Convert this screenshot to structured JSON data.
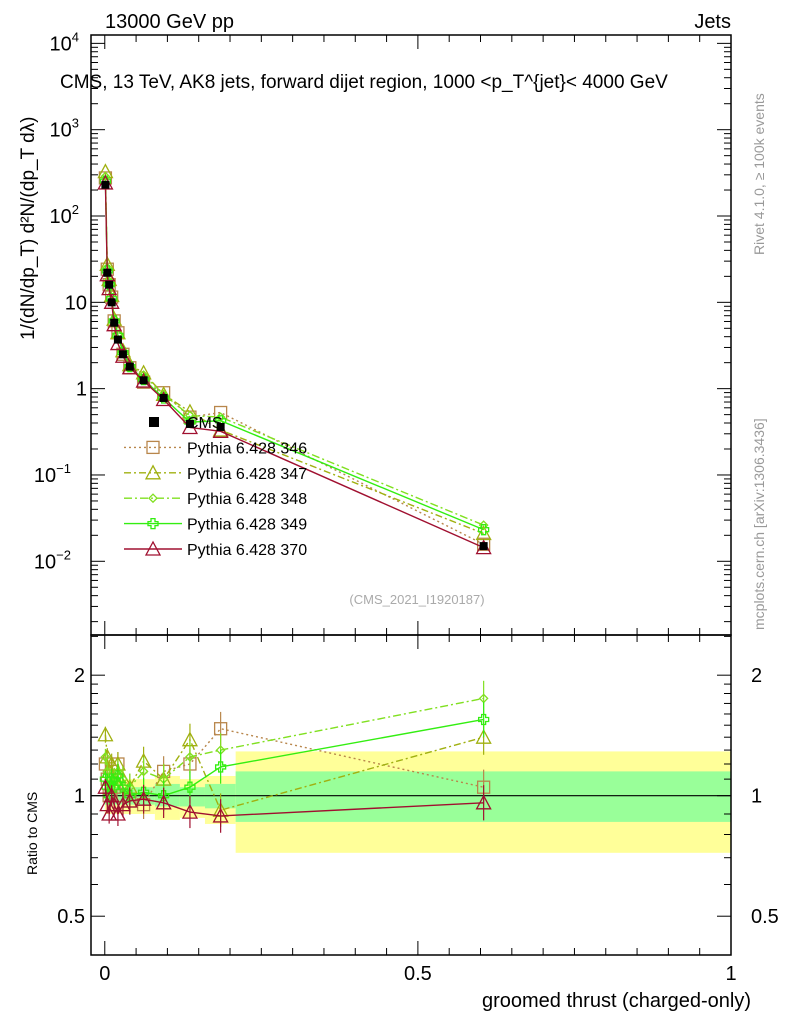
{
  "chart_data": {
    "type": "line",
    "header_left": "13000 GeV pp",
    "header_right": "Jets",
    "title": "CMS, 13 TeV, AK8 jets, forward dijet region, 1000 <p_T^{jet}< 4000 GeV",
    "ylabel": "1/(dN/dp_T) d²N/(dp_T dλ)",
    "ratio_ylabel": "Ratio to CMS",
    "xlabel": "groomed thrust (charged-only)",
    "side_label_top": "Rivet 4.1.0, ≥ 100k events",
    "side_label_bottom": "mcplots.cern.ch [arXiv:1306.3436]",
    "analysis_id": "(CMS_2021_I1920187)",
    "xlim": [
      -0.022,
      1.0
    ],
    "ylim_log": [
      0.0014,
      12500
    ],
    "ratio_ylim_log": [
      0.4,
      2.52
    ],
    "x_ticks": [
      {
        "v": 0,
        "label": "0"
      },
      {
        "v": 0.5,
        "label": "0.5"
      },
      {
        "v": 1,
        "label": "1"
      }
    ],
    "y_ticks": [
      {
        "v": 10000,
        "base": "10",
        "exp": "4"
      },
      {
        "v": 1000,
        "base": "10",
        "exp": "3"
      },
      {
        "v": 100,
        "base": "10",
        "exp": "2"
      },
      {
        "v": 10,
        "base": "10",
        "exp": ""
      },
      {
        "v": 1,
        "base": "1",
        "exp": ""
      },
      {
        "v": 0.1,
        "base": "10",
        "exp": "−1"
      },
      {
        "v": 0.01,
        "base": "10",
        "exp": "−2"
      }
    ],
    "ratio_ticks": [
      {
        "v": 2,
        "label": "2"
      },
      {
        "v": 1,
        "label": "1"
      },
      {
        "v": 0.5,
        "label": "0.5"
      }
    ],
    "x": [
      0.001,
      0.004,
      0.007,
      0.011,
      0.015,
      0.021,
      0.029,
      0.04,
      0.062,
      0.094,
      0.136,
      0.185,
      0.605
    ],
    "cms": {
      "name": "CMS",
      "values": [
        230,
        22,
        16,
        10,
        5.8,
        3.7,
        2.5,
        1.8,
        1.25,
        0.78,
        0.39,
        0.36,
        0.015
      ]
    },
    "series": [
      {
        "name": "Pythia 6.428 346",
        "color": "#b8864b",
        "marker": "square",
        "dash": "2,3",
        "ratio": [
          1.2,
          1.1,
          1.0,
          1.15,
          1.05,
          1.2,
          1.0,
          0.97,
          0.95,
          1.15,
          1.2,
          1.47,
          1.05
        ]
      },
      {
        "name": "Pythia 6.428 347",
        "color": "#a0b010",
        "marker": "triangle",
        "dash": "7,3,2,3",
        "ratio": [
          1.42,
          1.25,
          1.15,
          1.2,
          1.1,
          1.2,
          1.1,
          1.05,
          1.22,
          1.1,
          1.38,
          0.92,
          1.4
        ]
      },
      {
        "name": "Pythia 6.428 348",
        "color": "#80e020",
        "marker": "diamond",
        "dash": "8,3,2,3",
        "ratio": [
          1.25,
          1.15,
          1.1,
          1.05,
          1.1,
          1.15,
          1.1,
          1.05,
          1.15,
          1.1,
          1.25,
          1.3,
          1.75
        ]
      },
      {
        "name": "Pythia 6.428 349",
        "color": "#33ee11",
        "marker": "cross",
        "dash": "",
        "ratio": [
          1.1,
          1.05,
          1.0,
          1.1,
          1.05,
          1.12,
          1.05,
          1.0,
          1.02,
          1.0,
          1.05,
          1.18,
          1.55
        ]
      },
      {
        "name": "Pythia 6.428 370",
        "color": "#a01030",
        "marker": "triangle",
        "dash": "",
        "ratio": [
          1.05,
          0.95,
          0.9,
          1.0,
          0.95,
          0.9,
          0.95,
          0.97,
          0.98,
          0.96,
          0.91,
          0.89,
          0.96
        ]
      }
    ],
    "bands": [
      {
        "x0": 0.0,
        "x1": 0.08,
        "y_lo": 0.9,
        "y_hi": 1.1,
        "g_lo": 0.95,
        "g_hi": 1.05
      },
      {
        "x0": 0.08,
        "x1": 0.12,
        "y_lo": 0.87,
        "y_hi": 1.12,
        "g_lo": 0.94,
        "g_hi": 1.07
      },
      {
        "x0": 0.12,
        "x1": 0.16,
        "y_lo": 0.88,
        "y_hi": 1.1,
        "g_lo": 0.94,
        "g_hi": 1.05
      },
      {
        "x0": 0.16,
        "x1": 0.209,
        "y_lo": 0.85,
        "y_hi": 1.12,
        "g_lo": 0.93,
        "g_hi": 1.07
      },
      {
        "x0": 0.209,
        "x1": 1.0,
        "y_lo": 0.72,
        "y_hi": 1.29,
        "g_lo": 0.86,
        "g_hi": 1.15
      }
    ],
    "legend_position": "center-left"
  }
}
